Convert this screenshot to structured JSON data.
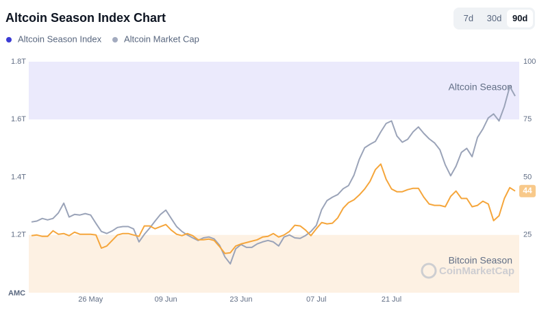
{
  "chart_data": {
    "type": "line",
    "title": "Altcoin Season Index Chart",
    "range_buttons": [
      "7d",
      "30d",
      "90d"
    ],
    "selected_range_index": 2,
    "corner_label": "AMC",
    "watermark": "CoinMarketCap",
    "categories": [
      null,
      null,
      null,
      null,
      null,
      null,
      null,
      null,
      null,
      null,
      null,
      "26 May",
      null,
      null,
      null,
      null,
      null,
      null,
      null,
      null,
      null,
      null,
      null,
      null,
      null,
      "09 Jun",
      null,
      null,
      null,
      null,
      null,
      null,
      null,
      null,
      null,
      null,
      null,
      null,
      null,
      "23 Jun",
      null,
      null,
      null,
      null,
      null,
      null,
      null,
      null,
      null,
      null,
      null,
      null,
      null,
      "07 Jul",
      null,
      null,
      null,
      null,
      null,
      null,
      null,
      null,
      null,
      null,
      null,
      null,
      null,
      "21 Jul",
      null,
      null,
      null,
      null,
      null,
      null,
      null,
      null,
      null,
      null,
      null,
      null,
      null,
      null,
      null,
      null,
      null,
      null,
      null,
      null,
      null,
      null,
      null
    ],
    "series": [
      {
        "name": "Altcoin Season Index",
        "color": "#3b3bd4",
        "line_color": "#f5a53a",
        "axis": "y2",
        "values": [
          24.7,
          25.0,
          24.4,
          24.4,
          26.8,
          25.3,
          25.6,
          24.7,
          26.2,
          25.3,
          25.3,
          25.3,
          25.0,
          19.3,
          20.2,
          22.6,
          25.0,
          25.6,
          25.6,
          25.0,
          24.4,
          28.9,
          28.9,
          27.7,
          28.6,
          29.5,
          27.1,
          25.3,
          24.7,
          25.6,
          24.7,
          22.9,
          22.9,
          23.2,
          22.6,
          19.9,
          17.0,
          17.3,
          20.2,
          21.1,
          21.7,
          22.3,
          22.9,
          24.1,
          24.4,
          25.6,
          24.1,
          25.0,
          26.5,
          29.2,
          28.9,
          27.1,
          24.7,
          27.7,
          30.4,
          29.8,
          30.1,
          32.4,
          36.6,
          39.0,
          40.2,
          42.3,
          44.9,
          48.2,
          53.3,
          55.7,
          49.1,
          44.9,
          43.7,
          43.7,
          44.6,
          45.2,
          45.2,
          41.4,
          38.4,
          37.8,
          37.8,
          37.2,
          41.7,
          44.0,
          40.8,
          40.8,
          37.2,
          37.8,
          39.6,
          38.4,
          31.2,
          33.3,
          40.8,
          45.5,
          44
        ]
      },
      {
        "name": "Altcoin Market Cap",
        "color": "#a3abbf",
        "line_color": "#9aa3b8",
        "axis": "y",
        "values": [
          1.245,
          1.248,
          1.257,
          1.252,
          1.257,
          1.276,
          1.31,
          1.262,
          1.271,
          1.269,
          1.274,
          1.269,
          1.24,
          1.212,
          1.205,
          1.214,
          1.226,
          1.229,
          1.229,
          1.221,
          1.176,
          1.202,
          1.224,
          1.248,
          1.271,
          1.286,
          1.257,
          1.229,
          1.212,
          1.2,
          1.19,
          1.181,
          1.19,
          1.193,
          1.186,
          1.164,
          1.124,
          1.1,
          1.152,
          1.167,
          1.157,
          1.157,
          1.169,
          1.176,
          1.181,
          1.176,
          1.162,
          1.193,
          1.2,
          1.19,
          1.188,
          1.198,
          1.212,
          1.233,
          1.288,
          1.319,
          1.331,
          1.34,
          1.36,
          1.371,
          1.407,
          1.462,
          1.502,
          1.514,
          1.524,
          1.557,
          1.586,
          1.595,
          1.543,
          1.521,
          1.531,
          1.557,
          1.574,
          1.552,
          1.533,
          1.519,
          1.495,
          1.443,
          1.405,
          1.438,
          1.486,
          1.5,
          1.471,
          1.538,
          1.567,
          1.605,
          1.619,
          1.595,
          1.645,
          1.714,
          1.681
        ]
      }
    ],
    "ylim": [
      1.0,
      1.8
    ],
    "yticks": [
      {
        "value": 1.2,
        "label": "1.2T"
      },
      {
        "value": 1.4,
        "label": "1.4T"
      },
      {
        "value": 1.6,
        "label": "1.6T"
      },
      {
        "value": 1.8,
        "label": "1.8T"
      }
    ],
    "y2lim": [
      0,
      100
    ],
    "y2ticks": [
      25,
      50,
      75,
      100
    ],
    "bands": [
      {
        "label": "Altcoin Season",
        "from": 75,
        "to": 100,
        "color": "#ebeafc"
      },
      {
        "label": "Bitcoin Season",
        "from": 0,
        "to": 25,
        "color": "#fdf1e3"
      }
    ],
    "grid": false
  }
}
